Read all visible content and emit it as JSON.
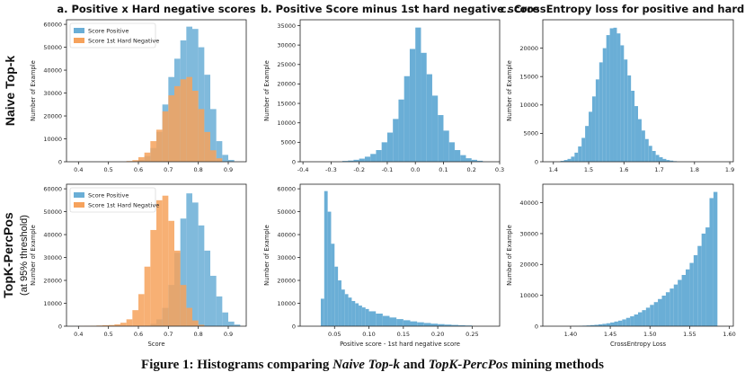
{
  "colors": {
    "positive": "#6aaed6",
    "negative": "#f6a25c",
    "overlap": "#b59a88"
  },
  "rows": [
    {
      "label": "Naive Top-k",
      "sublabel": ""
    },
    {
      "label": "TopK-PercPos",
      "sublabel": "(at 95% threshold)"
    }
  ],
  "caption": {
    "prefix": "Figure 1: Histograms comparing ",
    "method_a": "Naive Top-k",
    "middle": " and ",
    "method_b": "TopK-PercPos",
    "suffix": " mining methods"
  },
  "chart_data": [
    {
      "id": "a-top",
      "type": "bar",
      "title": "a. Positive x Hard negative scores",
      "xlabel": "",
      "ylabel": "Number of Example",
      "xlim": [
        0.36,
        0.96
      ],
      "ylim": [
        0,
        62000
      ],
      "xticks": [
        0.4,
        0.5,
        0.6,
        0.7,
        0.8,
        0.9
      ],
      "yticks": [
        0,
        10000,
        20000,
        30000,
        40000,
        50000,
        60000
      ],
      "legend": "top-left",
      "series": [
        {
          "name": "Score Positive",
          "color": "#6aaed6",
          "bin_edges": [
            0.6,
            0.62,
            0.64,
            0.66,
            0.68,
            0.7,
            0.72,
            0.74,
            0.76,
            0.78,
            0.8,
            0.82,
            0.84,
            0.86,
            0.88,
            0.9,
            0.92
          ],
          "counts": [
            800,
            2500,
            6000,
            13000,
            25000,
            37000,
            45000,
            53000,
            59000,
            58000,
            50000,
            38000,
            23000,
            9000,
            3000,
            800
          ]
        },
        {
          "name": "Score 1st Hard Negative",
          "color": "#f6a25c",
          "bin_edges": [
            0.56,
            0.58,
            0.6,
            0.62,
            0.64,
            0.66,
            0.68,
            0.7,
            0.72,
            0.74,
            0.76,
            0.78,
            0.8,
            0.82,
            0.84,
            0.86,
            0.88
          ],
          "counts": [
            300,
            700,
            2000,
            4000,
            9000,
            14000,
            22000,
            29000,
            33000,
            36000,
            37000,
            31000,
            23000,
            13000,
            5000,
            1500
          ]
        }
      ]
    },
    {
      "id": "a-bottom",
      "type": "bar",
      "title": "",
      "xlabel": "Score",
      "ylabel": "Number of Example",
      "xlim": [
        0.36,
        0.96
      ],
      "ylim": [
        0,
        62000
      ],
      "xticks": [
        0.4,
        0.5,
        0.6,
        0.7,
        0.8,
        0.9
      ],
      "yticks": [
        0,
        10000,
        20000,
        30000,
        40000,
        50000,
        60000
      ],
      "legend": "top-left",
      "series": [
        {
          "name": "Score Positive",
          "color": "#6aaed6",
          "bin_edges": [
            0.64,
            0.66,
            0.68,
            0.7,
            0.72,
            0.74,
            0.76,
            0.78,
            0.8,
            0.82,
            0.84,
            0.86,
            0.88,
            0.9,
            0.92,
            0.94
          ],
          "counts": [
            1000,
            3000,
            8000,
            18000,
            32000,
            47000,
            58000,
            54000,
            44000,
            33000,
            22000,
            13000,
            6000,
            2000,
            700
          ]
        },
        {
          "name": "Score 1st Hard Negative",
          "color": "#f6a25c",
          "bin_edges": [
            0.4,
            0.42,
            0.44,
            0.46,
            0.48,
            0.5,
            0.52,
            0.54,
            0.56,
            0.58,
            0.6,
            0.62,
            0.64,
            0.66,
            0.68,
            0.7,
            0.72,
            0.74,
            0.76,
            0.78,
            0.8,
            0.82
          ],
          "counts": [
            100,
            150,
            200,
            300,
            400,
            500,
            800,
            1500,
            3000,
            7000,
            14000,
            26000,
            42000,
            55000,
            57000,
            46000,
            33000,
            18000,
            8000,
            2500,
            600
          ]
        }
      ]
    },
    {
      "id": "b-top",
      "type": "bar",
      "title": "b. Positive Score minus 1st hard negative score",
      "xlabel": "",
      "ylabel": "Number of Example",
      "xlim": [
        -0.41,
        0.3
      ],
      "ylim": [
        0,
        36500
      ],
      "xticks": [
        -0.4,
        -0.3,
        -0.2,
        -0.1,
        0.0,
        0.1,
        0.2,
        0.3
      ],
      "yticks": [
        0,
        5000,
        10000,
        15000,
        20000,
        25000,
        30000,
        35000
      ],
      "series": [
        {
          "name": "",
          "color": "#6aaed6",
          "bin_edges": [
            -0.26,
            -0.24,
            -0.22,
            -0.2,
            -0.18,
            -0.16,
            -0.14,
            -0.12,
            -0.1,
            -0.08,
            -0.06,
            -0.04,
            -0.02,
            0.0,
            0.02,
            0.04,
            0.06,
            0.08,
            0.1,
            0.12,
            0.14,
            0.16,
            0.18,
            0.2,
            0.22,
            0.24
          ],
          "counts": [
            200,
            300,
            500,
            800,
            1300,
            2000,
            3000,
            5000,
            7500,
            11000,
            16000,
            22000,
            29000,
            34500,
            28000,
            22500,
            17000,
            12000,
            8000,
            5000,
            3000,
            1700,
            900,
            500,
            250
          ]
        }
      ]
    },
    {
      "id": "b-bottom",
      "type": "bar",
      "title": "",
      "xlabel": "Positive score - 1st hard negative score",
      "ylabel": "Number of Example",
      "xlim": [
        0.0,
        0.29
      ],
      "ylim": [
        0,
        62000
      ],
      "xticks": [
        0.05,
        0.1,
        0.15,
        0.2,
        0.25
      ],
      "yticks": [
        0,
        10000,
        20000,
        30000,
        40000,
        50000,
        60000
      ],
      "series": [
        {
          "name": "",
          "color": "#6aaed6",
          "bin_edges": [
            0.03,
            0.035,
            0.04,
            0.045,
            0.05,
            0.055,
            0.06,
            0.065,
            0.07,
            0.075,
            0.08,
            0.085,
            0.09,
            0.095,
            0.1,
            0.11,
            0.12,
            0.13,
            0.14,
            0.15,
            0.16,
            0.17,
            0.18,
            0.19,
            0.2,
            0.21,
            0.22,
            0.23,
            0.24,
            0.25
          ],
          "counts": [
            12000,
            59000,
            50000,
            36000,
            26000,
            20000,
            16000,
            14000,
            12500,
            11000,
            10000,
            9000,
            8200,
            7500,
            6500,
            5500,
            4500,
            3800,
            3100,
            2600,
            2100,
            1700,
            1400,
            1100,
            900,
            700,
            550,
            400,
            300
          ]
        }
      ]
    },
    {
      "id": "c-top",
      "type": "bar",
      "title": "c. CrossEntropy loss for positive and hard negs",
      "xlabel": "",
      "ylabel": "Number of Example",
      "xlim": [
        1.37,
        1.91
      ],
      "ylim": [
        0,
        25000
      ],
      "xticks": [
        1.4,
        1.5,
        1.6,
        1.7,
        1.8,
        1.9
      ],
      "yticks": [
        0,
        5000,
        10000,
        15000,
        20000
      ],
      "series": [
        {
          "name": "",
          "color": "#6aaed6",
          "bin_edges": [
            1.42,
            1.43,
            1.44,
            1.45,
            1.46,
            1.47,
            1.48,
            1.49,
            1.5,
            1.51,
            1.52,
            1.53,
            1.54,
            1.55,
            1.56,
            1.57,
            1.58,
            1.59,
            1.6,
            1.61,
            1.62,
            1.63,
            1.64,
            1.65,
            1.66,
            1.67,
            1.68,
            1.69,
            1.7,
            1.71,
            1.72,
            1.73,
            1.74,
            1.75
          ],
          "counts": [
            150,
            300,
            500,
            900,
            1600,
            2700,
            4200,
            6300,
            8800,
            11500,
            14500,
            17500,
            20000,
            22300,
            23500,
            23600,
            22600,
            20500,
            18000,
            15200,
            12500,
            9800,
            7500,
            5500,
            4000,
            2800,
            1900,
            1200,
            800,
            500,
            300,
            200,
            100
          ]
        }
      ]
    },
    {
      "id": "c-bottom",
      "type": "bar",
      "title": "",
      "xlabel": "CrossEntropy Loss",
      "ylabel": "Number of Example",
      "xlim": [
        1.365,
        1.605
      ],
      "ylim": [
        0,
        46000
      ],
      "xticks": [
        1.4,
        1.45,
        1.5,
        1.55,
        1.6
      ],
      "yticks": [
        0,
        10000,
        20000,
        30000,
        40000
      ],
      "series": [
        {
          "name": "",
          "color": "#6aaed6",
          "bin_edges": [
            1.4,
            1.405,
            1.41,
            1.415,
            1.42,
            1.425,
            1.43,
            1.435,
            1.44,
            1.445,
            1.45,
            1.455,
            1.46,
            1.465,
            1.47,
            1.475,
            1.48,
            1.485,
            1.49,
            1.495,
            1.5,
            1.505,
            1.51,
            1.515,
            1.52,
            1.525,
            1.53,
            1.535,
            1.54,
            1.545,
            1.55,
            1.555,
            1.56,
            1.565,
            1.57,
            1.575,
            1.58,
            1.585
          ],
          "counts": [
            50,
            80,
            120,
            180,
            250,
            350,
            450,
            600,
            750,
            950,
            1200,
            1500,
            1800,
            2200,
            2700,
            3200,
            3800,
            4500,
            5200,
            6000,
            6900,
            7800,
            8800,
            9900,
            11000,
            12200,
            13500,
            15000,
            16600,
            18400,
            20500,
            23000,
            26000,
            30000,
            32000,
            41500,
            43500
          ]
        }
      ]
    }
  ]
}
